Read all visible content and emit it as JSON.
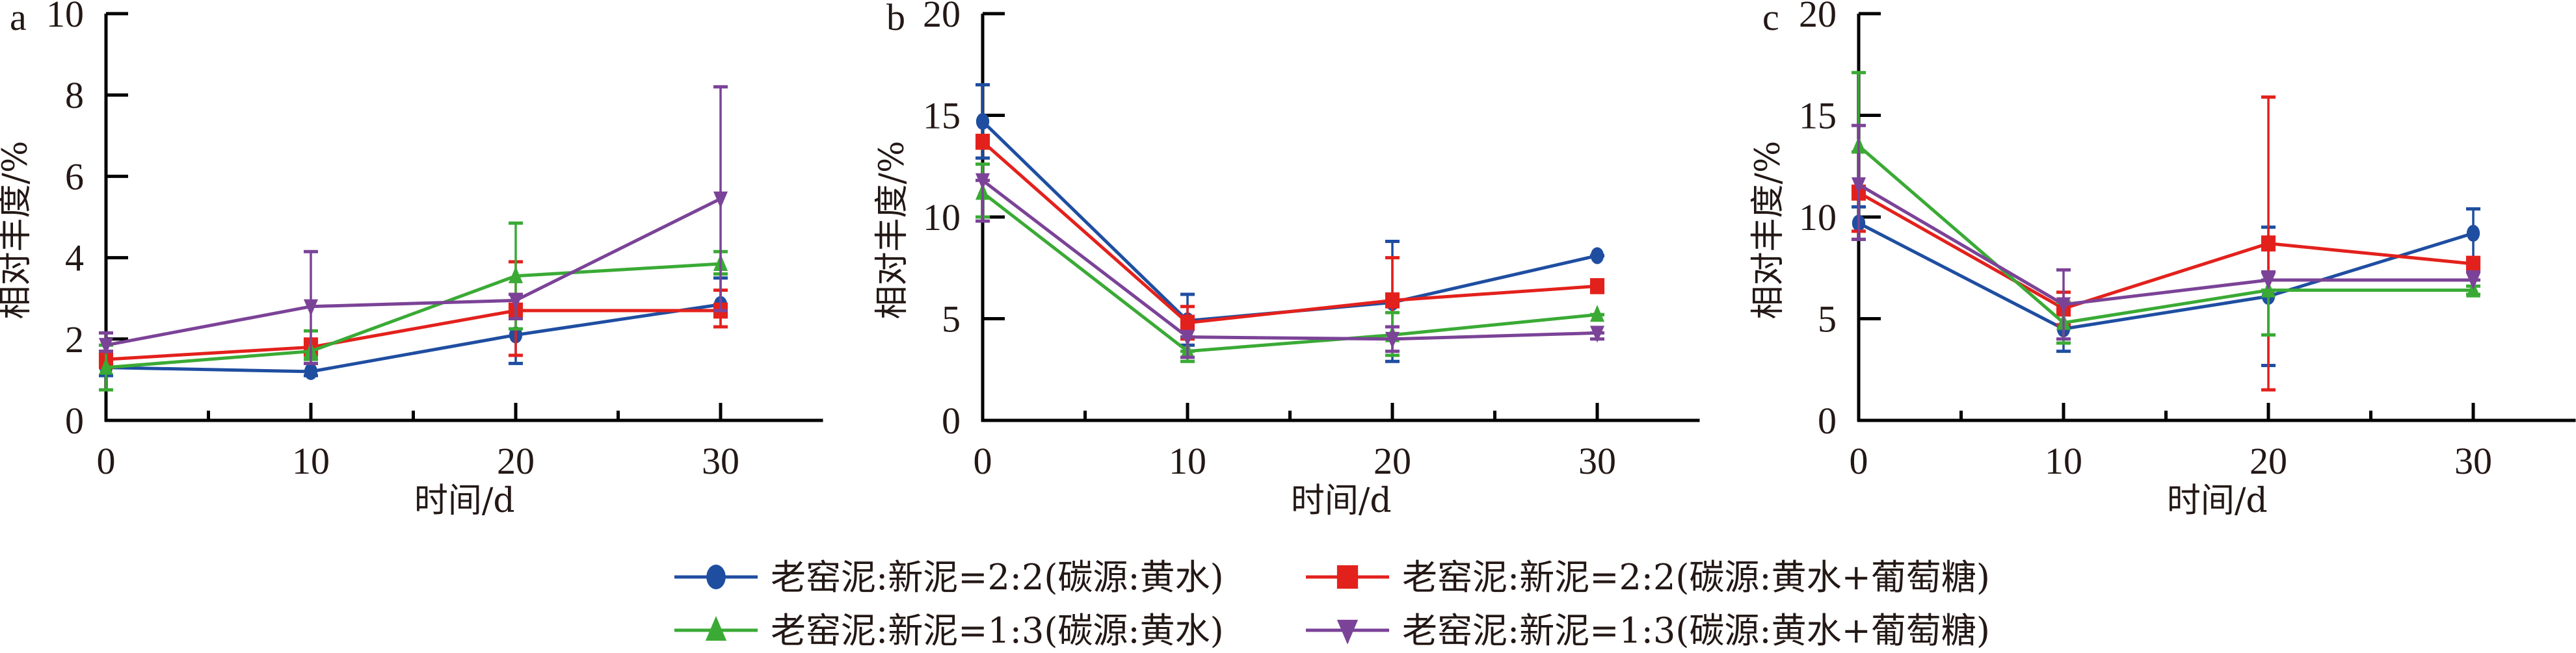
{
  "chart_data": [
    {
      "type": "line",
      "panel_label": "a",
      "xlabel": "时间/d",
      "ylabel": "相对丰度/%",
      "x": [
        0,
        10,
        20,
        30
      ],
      "xlim": [
        0,
        35
      ],
      "ylim": [
        0,
        10
      ],
      "xticks": [
        "0",
        "10",
        "20",
        "30"
      ],
      "yticks": [
        "0",
        "2",
        "4",
        "6",
        "8",
        "10"
      ],
      "ytick_values": [
        0,
        2,
        4,
        6,
        8,
        10
      ],
      "series": [
        {
          "name": "老窑泥:新泥=2:2(碳源:黄水)",
          "values": [
            1.3,
            1.2,
            2.1,
            2.85
          ],
          "err_low": [
            1.1,
            1.1,
            1.4,
            2.3
          ],
          "err_high": [
            1.6,
            1.4,
            2.8,
            3.5
          ]
        },
        {
          "name": "老窑泥:新泥=2:2(碳源:黄水+葡萄糖)",
          "values": [
            1.5,
            1.8,
            2.7,
            2.7
          ],
          "err_low": [
            1.3,
            1.6,
            1.6,
            2.3
          ],
          "err_high": [
            1.7,
            2.0,
            3.9,
            3.2
          ]
        },
        {
          "name": "老窑泥:新泥=1:3(碳源:黄水)",
          "values": [
            1.3,
            1.7,
            3.55,
            3.85
          ],
          "err_low": [
            0.75,
            1.5,
            2.25,
            3.6
          ],
          "err_high": [
            1.85,
            2.2,
            4.85,
            4.15
          ]
        },
        {
          "name": "老窑泥:新泥=1:3(碳源:黄水+葡萄糖)",
          "values": [
            1.85,
            2.8,
            2.95,
            5.45
          ],
          "err_low": [
            1.7,
            1.4,
            2.5,
            2.7
          ],
          "err_high": [
            2.15,
            4.15,
            3.1,
            8.2
          ]
        }
      ]
    },
    {
      "type": "line",
      "panel_label": "b",
      "xlabel": "时间/d",
      "ylabel": "相对丰度/%",
      "x": [
        0,
        10,
        20,
        30
      ],
      "xlim": [
        0,
        35
      ],
      "ylim": [
        0,
        20
      ],
      "xticks": [
        "0",
        "10",
        "20",
        "30"
      ],
      "yticks": [
        "0",
        "5",
        "10",
        "15",
        "20"
      ],
      "ytick_values": [
        0,
        5,
        10,
        15,
        20
      ],
      "series": [
        {
          "name": "老窑泥:新泥=2:2(碳源:黄水)",
          "values": [
            14.7,
            4.9,
            5.8,
            8.1
          ],
          "err_low": [
            12.9,
            3.7,
            2.9,
            8.1
          ],
          "err_high": [
            16.5,
            6.2,
            8.8,
            8.1
          ]
        },
        {
          "name": "老窑泥:新泥=2:2(碳源:黄水+葡萄糖)",
          "values": [
            13.7,
            4.8,
            5.9,
            6.6
          ],
          "err_low": [
            13.7,
            4.0,
            4.0,
            6.6
          ],
          "err_high": [
            13.7,
            5.6,
            8.0,
            6.6
          ]
        },
        {
          "name": "老窑泥:新泥=1:3(碳源:黄水)",
          "values": [
            11.2,
            3.4,
            4.2,
            5.2
          ],
          "err_low": [
            10.0,
            2.9,
            3.2,
            5.2
          ],
          "err_high": [
            12.6,
            3.4,
            5.3,
            5.2
          ]
        },
        {
          "name": "老窑泥:新泥=1:3(碳源:黄水+葡萄糖)",
          "values": [
            11.8,
            4.1,
            4.0,
            4.3
          ],
          "err_low": [
            9.8,
            3.1,
            3.4,
            4.0
          ],
          "err_high": [
            11.8,
            4.1,
            4.6,
            4.3
          ]
        }
      ]
    },
    {
      "type": "line",
      "panel_label": "c",
      "xlabel": "时间/d",
      "ylabel": "相对丰度/%",
      "x": [
        0,
        10,
        20,
        30
      ],
      "xlim": [
        0,
        35
      ],
      "ylim": [
        0,
        20
      ],
      "xticks": [
        "0",
        "10",
        "20",
        "30"
      ],
      "yticks": [
        "0",
        "5",
        "10",
        "15",
        "20"
      ],
      "ytick_values": [
        0,
        5,
        10,
        15,
        20
      ],
      "series": [
        {
          "name": "老窑泥:新泥=2:2(碳源:黄水)",
          "values": [
            9.7,
            4.5,
            6.1,
            9.2
          ],
          "err_low": [
            8.9,
            3.4,
            2.7,
            8.0
          ],
          "err_high": [
            10.5,
            5.6,
            9.5,
            10.4
          ]
        },
        {
          "name": "老窑泥:新泥=2:2(碳源:黄水+葡萄糖)",
          "values": [
            11.2,
            5.5,
            8.7,
            7.7
          ],
          "err_low": [
            9.3,
            4.7,
            1.5,
            7.4
          ],
          "err_high": [
            13.2,
            6.3,
            15.9,
            8.0
          ]
        },
        {
          "name": "老窑泥:新泥=1:3(碳源:黄水)",
          "values": [
            13.5,
            4.8,
            6.4,
            6.4
          ],
          "err_low": [
            13.2,
            3.8,
            4.2,
            6.2
          ],
          "err_high": [
            17.1,
            5.8,
            6.4,
            6.6
          ]
        },
        {
          "name": "老窑泥:新泥=1:3(碳源:黄水+葡萄糖)",
          "values": [
            11.6,
            5.7,
            6.9,
            6.9
          ],
          "err_low": [
            8.9,
            4.0,
            6.9,
            6.9
          ],
          "err_high": [
            14.5,
            7.4,
            7.3,
            7.3
          ]
        }
      ]
    }
  ],
  "legend": {
    "items": [
      {
        "label": "老窑泥:新泥=2:2(碳源:黄水)",
        "color": "#1f4ea1",
        "marker": "circle"
      },
      {
        "label": "老窑泥:新泥=2:2(碳源:黄水+葡萄糖)",
        "color": "#e3211c",
        "marker": "square"
      },
      {
        "label": "老窑泥:新泥=1:3(碳源:黄水)",
        "color": "#3aaa35",
        "marker": "triangle-up"
      },
      {
        "label": "老窑泥:新泥=1:3(碳源:黄水+葡萄糖)",
        "color": "#7b4397",
        "marker": "triangle-down"
      }
    ]
  },
  "series_colors": [
    "#1f4ea1",
    "#e3211c",
    "#3aaa35",
    "#7b4397"
  ],
  "series_markers": [
    "circle",
    "square",
    "triangle-up",
    "triangle-down"
  ]
}
